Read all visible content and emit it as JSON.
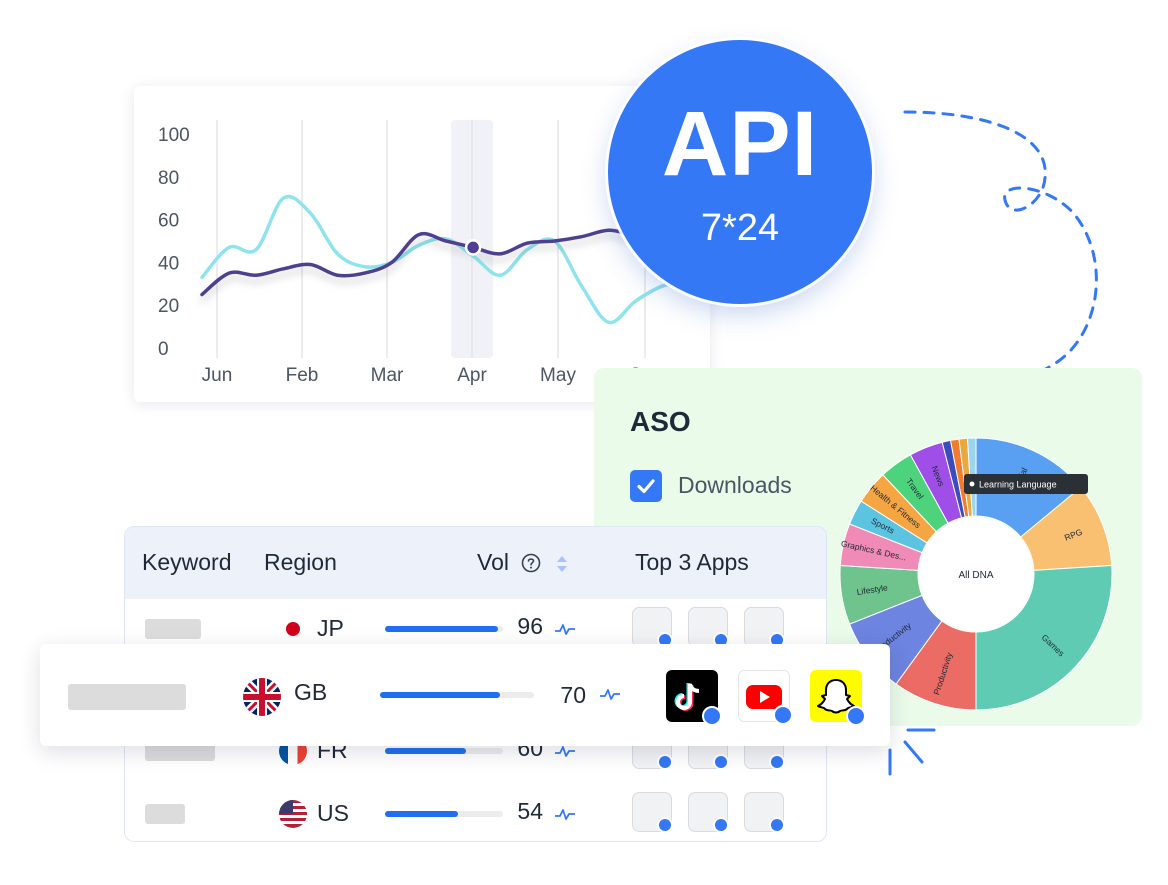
{
  "line_chart": {
    "type": "line",
    "x_labels": [
      "Jun",
      "Feb",
      "Mar",
      "Apr",
      "May",
      "Jun"
    ],
    "y_ticks": [
      "100",
      "80",
      "60",
      "40",
      "20",
      "0"
    ],
    "ylim": [
      0,
      100
    ],
    "highlight_label": "Apr",
    "series": [
      {
        "color": "#8ee3ec",
        "values": [
          33,
          47,
          46,
          70,
          63,
          44,
          38,
          40,
          48,
          51,
          43,
          34,
          46,
          50,
          29,
          12,
          22,
          29,
          31
        ]
      },
      {
        "color": "#4f3f8f",
        "values": [
          25,
          35,
          34,
          37,
          39,
          34,
          35,
          40,
          53,
          50,
          47,
          44,
          49,
          50,
          52,
          55,
          53,
          56,
          55
        ]
      }
    ]
  },
  "api_badge": {
    "title": "API",
    "subtitle": "7*24",
    "color": "#3478f6"
  },
  "aso": {
    "title": "ASO",
    "checkbox_label": "Downloads",
    "checked": true,
    "donut": {
      "center_label": "All DNA",
      "tooltip": "Learning Language",
      "segments": [
        {
          "label": "Social",
          "value": 14,
          "color": "#5aa0f2"
        },
        {
          "label": "RPG",
          "value": 10,
          "color": "#f9c071"
        },
        {
          "label": "Games",
          "value": 26,
          "color": "#5fcbb3"
        },
        {
          "label": "Productivity",
          "value": 10,
          "color": "#ea6c64"
        },
        {
          "label": "Productivity",
          "value": 9,
          "color": "#6d84e0"
        },
        {
          "label": "Lifestyle",
          "value": 7,
          "color": "#6fc48e"
        },
        {
          "label": "Graphics & Des...",
          "value": 5,
          "color": "#f08ab6"
        },
        {
          "label": "Sports",
          "value": 3,
          "color": "#5cc3e0"
        },
        {
          "label": "Health & Fitness",
          "value": 4,
          "color": "#f6a543"
        },
        {
          "label": "Travel",
          "value": 4,
          "color": "#4dd37c"
        },
        {
          "label": "News",
          "value": 4,
          "color": "#a04ee8"
        },
        {
          "label": "",
          "value": 1,
          "color": "#3b4cbf"
        },
        {
          "label": "",
          "value": 1,
          "color": "#f17b2e"
        },
        {
          "label": "",
          "value": 1,
          "color": "#e9a93c"
        },
        {
          "label": "",
          "value": 1,
          "color": "#9ad4ee"
        }
      ]
    }
  },
  "table": {
    "headers": {
      "keyword": "Keyword",
      "region": "Region",
      "vol": "Vol",
      "top_apps": "Top 3 Apps"
    },
    "rows": [
      {
        "code": "JP",
        "vol": "96",
        "vol_fraction": 0.96
      },
      {
        "code": "FR",
        "vol": "60",
        "vol_fraction": 0.69
      },
      {
        "code": "US",
        "vol": "54",
        "vol_fraction": 0.62
      }
    ],
    "highlighted_row": {
      "code": "GB",
      "vol": "70",
      "vol_fraction": 0.78,
      "apps": [
        {
          "name": "tiktok-icon"
        },
        {
          "name": "youtube-icon"
        },
        {
          "name": "snapchat-icon"
        }
      ]
    }
  },
  "colors": {
    "accent": "#3478f6",
    "bar": "#1f6ff0"
  }
}
